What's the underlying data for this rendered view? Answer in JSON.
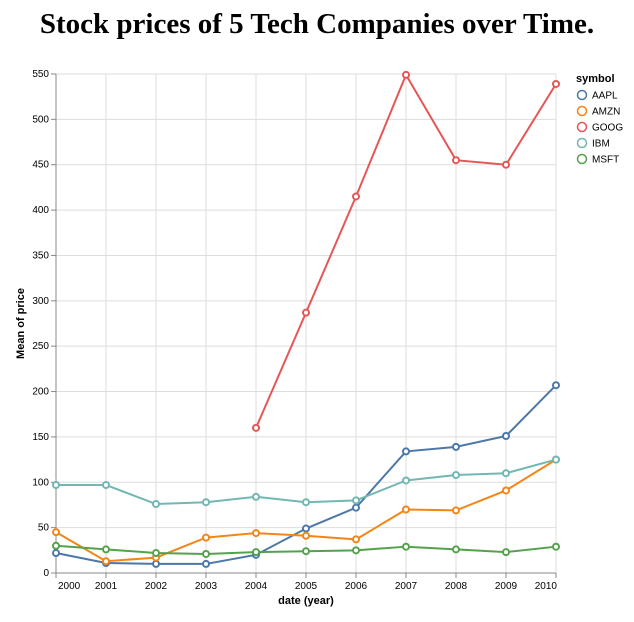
{
  "chart_data": {
    "type": "line",
    "title": "Stock prices of 5 Tech Companies over Time.",
    "xlabel": "date (year)",
    "ylabel": "Mean of price",
    "x": [
      2000,
      2001,
      2002,
      2003,
      2004,
      2005,
      2006,
      2007,
      2008,
      2009,
      2010
    ],
    "x_tick_labels": [
      "2000",
      "2001",
      "2002",
      "2003",
      "2004",
      "2005",
      "2006",
      "2007",
      "2008",
      "2009",
      "2010"
    ],
    "xlim": [
      2000,
      2010
    ],
    "ylim": [
      0,
      550
    ],
    "y_ticks": [
      0,
      50,
      100,
      150,
      200,
      250,
      300,
      350,
      400,
      450,
      500,
      550
    ],
    "grid": true,
    "legend": {
      "title": "symbol",
      "position": "top-right"
    },
    "series": [
      {
        "name": "AAPL",
        "color": "#4c78a8",
        "values": [
          22,
          11,
          10,
          10,
          20,
          49,
          72,
          134,
          139,
          151,
          207
        ]
      },
      {
        "name": "AMZN",
        "color": "#f58518",
        "values": [
          45,
          13,
          17,
          39,
          44,
          41,
          37,
          70,
          69,
          91,
          125
        ]
      },
      {
        "name": "GOOG",
        "color": "#e45756",
        "values": [
          null,
          null,
          null,
          null,
          160,
          287,
          415,
          549,
          455,
          450,
          539
        ]
      },
      {
        "name": "IBM",
        "color": "#72b7b2",
        "values": [
          97,
          97,
          76,
          78,
          84,
          78,
          80,
          102,
          108,
          110,
          125
        ]
      },
      {
        "name": "MSFT",
        "color": "#54a24b",
        "values": [
          30,
          26,
          22,
          21,
          23,
          24,
          25,
          29,
          26,
          23,
          29
        ]
      }
    ]
  }
}
